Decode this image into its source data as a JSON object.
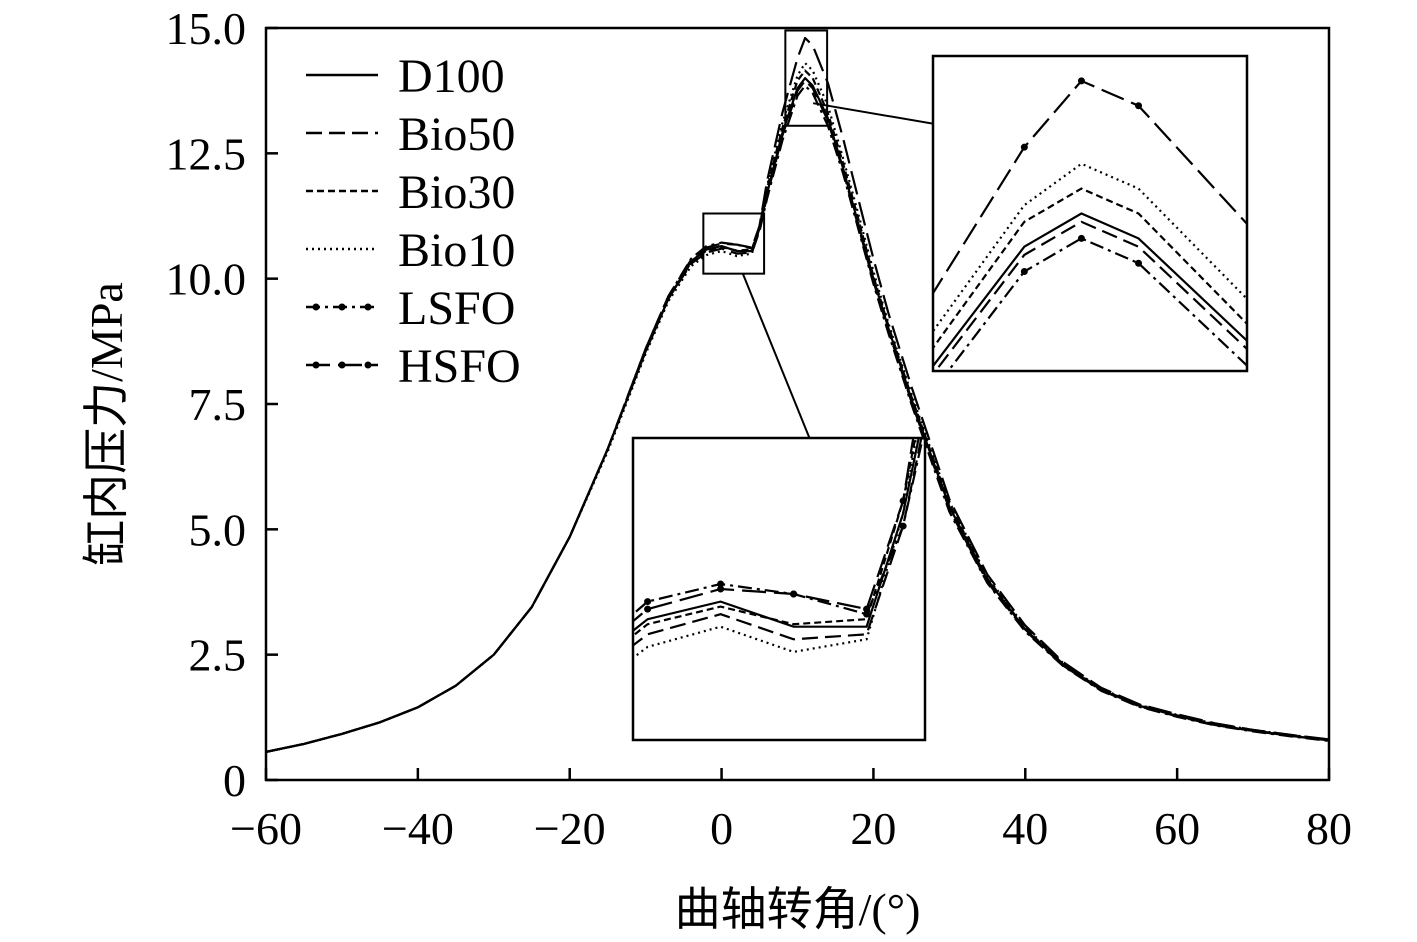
{
  "chart_data": {
    "type": "line",
    "title": "",
    "xlabel": "曲轴转角/(°)",
    "ylabel": "缸内压力/MPa",
    "xlim": [
      -60,
      80
    ],
    "ylim": [
      0,
      15
    ],
    "xticks": [
      -60,
      -40,
      -20,
      0,
      20,
      40,
      60,
      80
    ],
    "xtick_labels": [
      "−60",
      "−40",
      "−20",
      "0",
      "20",
      "40",
      "60",
      "80"
    ],
    "yticks": [
      0,
      2.5,
      5,
      7.5,
      10,
      12.5,
      15
    ],
    "ytick_labels": [
      "0",
      "2.5",
      "5.0",
      "7.5",
      "10.0",
      "12.5",
      "15.0"
    ],
    "legend_position": "top-left",
    "x": [
      -60,
      -55,
      -50,
      -45,
      -40,
      -35,
      -30,
      -25,
      -20,
      -15,
      -10,
      -7,
      -4,
      -2,
      0,
      2,
      4,
      5,
      6,
      8,
      10,
      11,
      12,
      14,
      16,
      18,
      20,
      22,
      25,
      28,
      30,
      35,
      40,
      45,
      50,
      55,
      60,
      65,
      70,
      75,
      80
    ],
    "series": [
      {
        "name": "D100",
        "values": [
          0.56,
          0.72,
          0.92,
          1.15,
          1.45,
          1.88,
          2.5,
          3.45,
          4.85,
          6.6,
          8.55,
          9.6,
          10.35,
          10.58,
          10.65,
          10.55,
          10.55,
          11.0,
          11.7,
          12.9,
          13.8,
          14.0,
          13.85,
          13.2,
          12.2,
          11.1,
          10.0,
          9.0,
          7.6,
          6.3,
          5.45,
          4.0,
          3.0,
          2.3,
          1.8,
          1.48,
          1.28,
          1.1,
          0.98,
          0.88,
          0.79
        ]
      },
      {
        "name": "Bio50",
        "values": [
          0.56,
          0.72,
          0.92,
          1.15,
          1.45,
          1.88,
          2.5,
          3.45,
          4.85,
          6.6,
          8.55,
          9.6,
          10.3,
          10.52,
          10.6,
          10.5,
          10.52,
          10.95,
          11.65,
          12.85,
          13.75,
          13.95,
          13.8,
          13.15,
          12.15,
          11.05,
          9.95,
          8.95,
          7.55,
          6.25,
          5.4,
          3.95,
          2.98,
          2.28,
          1.79,
          1.47,
          1.27,
          1.1,
          0.98,
          0.88,
          0.79
        ]
      },
      {
        "name": "Bio30",
        "values": [
          0.56,
          0.72,
          0.92,
          1.15,
          1.45,
          1.88,
          2.5,
          3.45,
          4.85,
          6.6,
          8.55,
          9.6,
          10.33,
          10.56,
          10.63,
          10.56,
          10.58,
          11.05,
          11.8,
          13.0,
          13.95,
          14.15,
          14.0,
          13.3,
          12.3,
          11.2,
          10.05,
          9.05,
          7.65,
          6.35,
          5.5,
          4.02,
          3.02,
          2.31,
          1.81,
          1.49,
          1.29,
          1.11,
          0.99,
          0.89,
          0.8
        ]
      },
      {
        "name": "Bio10",
        "values": [
          0.56,
          0.72,
          0.92,
          1.15,
          1.45,
          1.88,
          2.5,
          3.45,
          4.85,
          6.55,
          8.5,
          9.55,
          10.25,
          10.47,
          10.55,
          10.45,
          10.5,
          11.0,
          11.85,
          13.1,
          14.05,
          14.3,
          14.15,
          13.45,
          12.4,
          11.3,
          10.15,
          9.1,
          7.7,
          6.4,
          5.55,
          4.05,
          3.05,
          2.33,
          1.82,
          1.5,
          1.3,
          1.12,
          1.0,
          0.9,
          0.8
        ]
      },
      {
        "name": "LSFO",
        "values": [
          0.56,
          0.72,
          0.92,
          1.15,
          1.45,
          1.88,
          2.5,
          3.45,
          4.85,
          6.6,
          8.6,
          9.65,
          10.4,
          10.65,
          10.72,
          10.68,
          10.6,
          10.95,
          11.6,
          12.75,
          13.65,
          13.85,
          13.7,
          13.05,
          12.1,
          11.0,
          9.9,
          8.9,
          7.5,
          6.2,
          5.35,
          3.93,
          2.96,
          2.27,
          1.78,
          1.46,
          1.26,
          1.09,
          0.97,
          0.87,
          0.78
        ]
      },
      {
        "name": "HSFO",
        "values": [
          0.56,
          0.72,
          0.92,
          1.15,
          1.45,
          1.88,
          2.5,
          3.45,
          4.85,
          6.6,
          8.6,
          9.65,
          10.38,
          10.62,
          10.7,
          10.68,
          10.62,
          11.05,
          11.95,
          13.3,
          14.4,
          14.8,
          14.65,
          13.9,
          12.8,
          11.6,
          10.4,
          9.3,
          7.85,
          6.5,
          5.6,
          4.1,
          3.08,
          2.35,
          1.84,
          1.51,
          1.31,
          1.13,
          1.0,
          0.9,
          0.81
        ]
      }
    ],
    "annotations": [
      "inset zoom of peak region near 10° (13.0–15.0 MPa)",
      "inset zoom of shoulder near 0° (10.1–11.3 MPa)"
    ]
  },
  "colors": {
    "line": "#000000",
    "background": "#ffffff"
  },
  "legend_styles": {
    "D100": "solid",
    "Bio50": "dashed",
    "Bio30": "short-dash",
    "Bio10": "dotted",
    "LSFO": "dash-dot-marker",
    "HSFO": "long-dash-marker"
  }
}
